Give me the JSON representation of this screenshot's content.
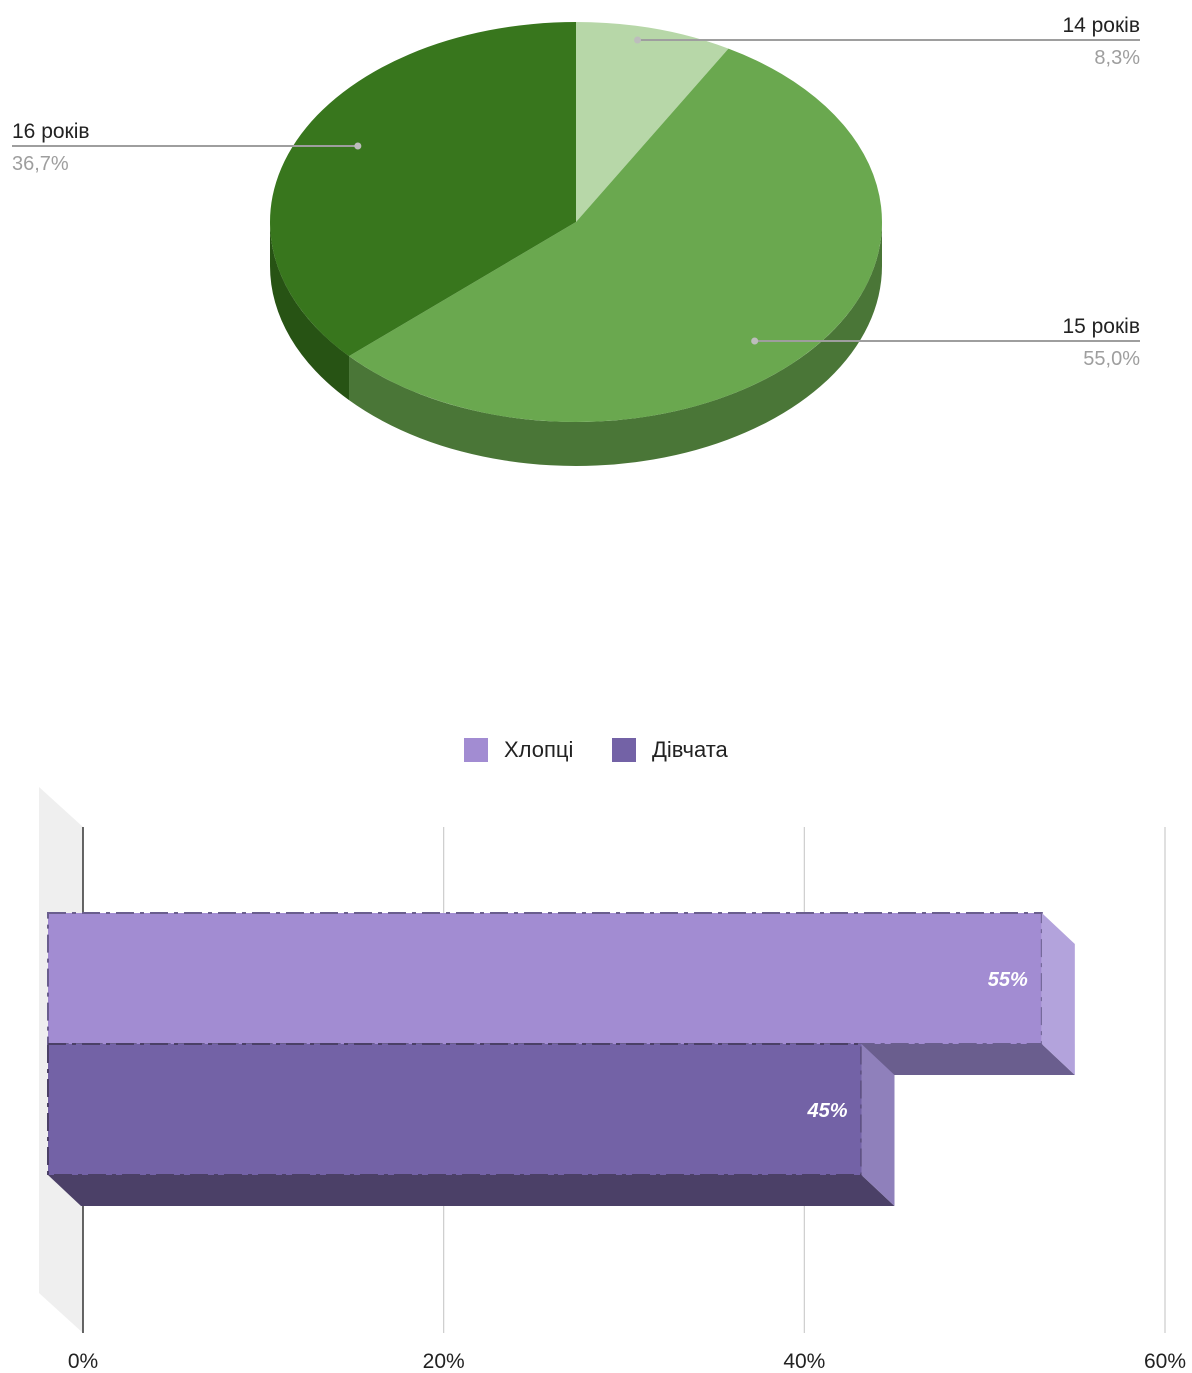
{
  "chart_data": [
    {
      "type": "pie",
      "style": "3d",
      "slices": [
        {
          "label": "14 років",
          "value": 8.3,
          "value_label": "8,3%",
          "color": "#b7d7a8"
        },
        {
          "label": "15 років",
          "value": 55.0,
          "value_label": "55,0%",
          "color": "#6aa84f"
        },
        {
          "label": "16 років",
          "value": 36.7,
          "value_label": "36,7%",
          "color": "#38761d"
        }
      ],
      "side_colors": [
        "#9cb88f",
        "#4a7637",
        "#275314"
      ]
    },
    {
      "type": "bar",
      "orientation": "horizontal",
      "style": "3d",
      "legend": {
        "position": "top"
      },
      "series": [
        {
          "name": "Хлопці",
          "value": 55,
          "data_label": "55%",
          "color": "#a28cd2"
        },
        {
          "name": "Дівчата",
          "value": 45,
          "data_label": "45%",
          "color": "#7362a6"
        }
      ],
      "xlim": [
        0,
        60
      ],
      "ticks": [
        0,
        20,
        40,
        60
      ],
      "tick_labels": [
        "0%",
        "20%",
        "40%",
        "60%"
      ],
      "grid": true
    }
  ]
}
